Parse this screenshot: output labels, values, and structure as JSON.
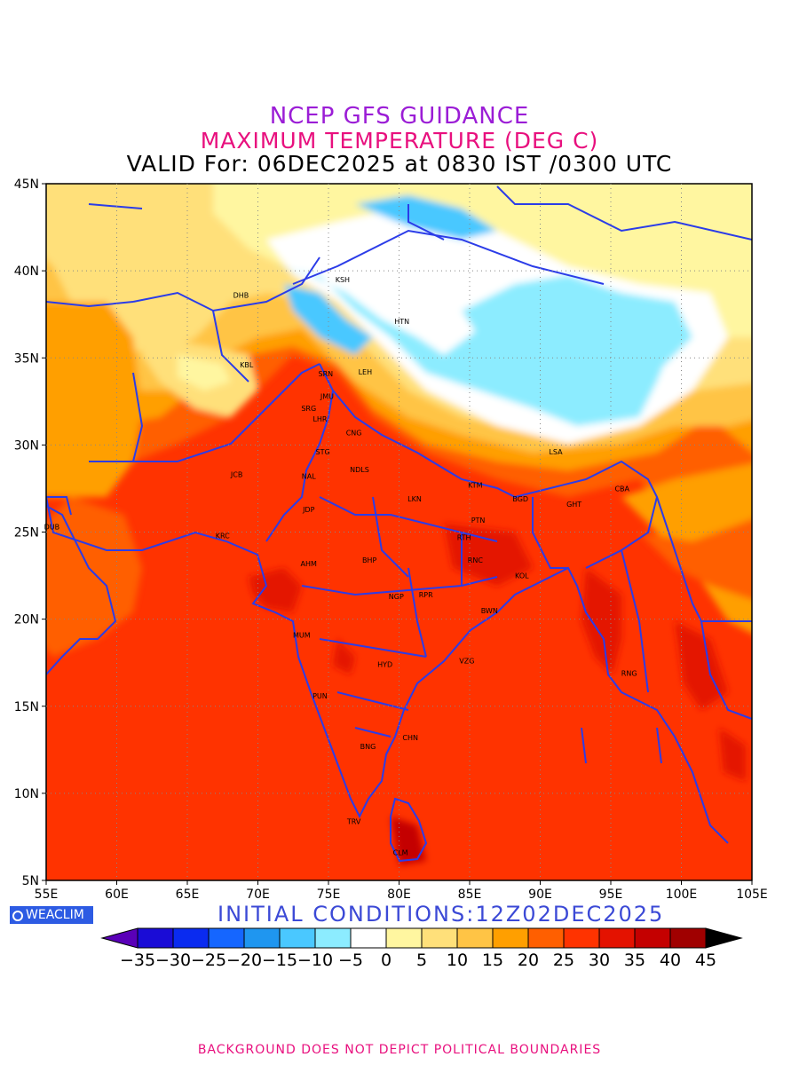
{
  "titles": {
    "line1": "NCEP GFS GUIDANCE",
    "line2": "MAXIMUM TEMPERATURE (DEG C)",
    "line3": "VALID For: 06DEC2025 at 0830 IST /0300 UTC"
  },
  "axes": {
    "lon_labels": [
      "55E",
      "60E",
      "65E",
      "70E",
      "75E",
      "80E",
      "85E",
      "90E",
      "95E",
      "100E",
      "105E"
    ],
    "lat_labels": [
      "5N",
      "10N",
      "15N",
      "20N",
      "25N",
      "30N",
      "35N",
      "40N",
      "45N"
    ],
    "lon_range": [
      55,
      105
    ],
    "lat_range": [
      5,
      45
    ],
    "grid": "dotted"
  },
  "cities": [
    {
      "code": "KSH",
      "lon": 76.0,
      "lat": 39.5
    },
    {
      "code": "DHB",
      "lon": 68.8,
      "lat": 38.6
    },
    {
      "code": "HTN",
      "lon": 80.2,
      "lat": 37.1
    },
    {
      "code": "KBL",
      "lon": 69.2,
      "lat": 34.6
    },
    {
      "code": "SRN",
      "lon": 74.8,
      "lat": 34.1
    },
    {
      "code": "LEH",
      "lon": 77.6,
      "lat": 34.2
    },
    {
      "code": "JMU",
      "lon": 74.9,
      "lat": 32.8
    },
    {
      "code": "SRG",
      "lon": 73.6,
      "lat": 32.1
    },
    {
      "code": "LHR",
      "lon": 74.4,
      "lat": 31.5
    },
    {
      "code": "CNG",
      "lon": 76.8,
      "lat": 30.7
    },
    {
      "code": "LSA",
      "lon": 91.1,
      "lat": 29.6
    },
    {
      "code": "JCB",
      "lon": 68.5,
      "lat": 28.3
    },
    {
      "code": "STG",
      "lon": 74.6,
      "lat": 29.6
    },
    {
      "code": "NAL",
      "lon": 73.6,
      "lat": 28.2
    },
    {
      "code": "NDLS",
      "lon": 77.2,
      "lat": 28.6
    },
    {
      "code": "KTM",
      "lon": 85.4,
      "lat": 27.7
    },
    {
      "code": "CBA",
      "lon": 95.8,
      "lat": 27.5
    },
    {
      "code": "BGD",
      "lon": 88.6,
      "lat": 26.9
    },
    {
      "code": "GHT",
      "lon": 92.4,
      "lat": 26.6
    },
    {
      "code": "LKN",
      "lon": 81.1,
      "lat": 26.9
    },
    {
      "code": "JDP",
      "lon": 73.6,
      "lat": 26.3
    },
    {
      "code": "DUB",
      "lon": 55.4,
      "lat": 25.3
    },
    {
      "code": "PTN",
      "lon": 85.6,
      "lat": 25.7
    },
    {
      "code": "KRC",
      "lon": 67.5,
      "lat": 24.8
    },
    {
      "code": "RTH",
      "lon": 84.6,
      "lat": 24.7
    },
    {
      "code": "AHM",
      "lon": 73.6,
      "lat": 23.2
    },
    {
      "code": "BHP",
      "lon": 77.9,
      "lat": 23.4
    },
    {
      "code": "RNC",
      "lon": 85.4,
      "lat": 23.4
    },
    {
      "code": "KOL",
      "lon": 88.7,
      "lat": 22.5
    },
    {
      "code": "NGP",
      "lon": 79.8,
      "lat": 21.3
    },
    {
      "code": "RPR",
      "lon": 81.9,
      "lat": 21.4
    },
    {
      "code": "BWN",
      "lon": 86.4,
      "lat": 20.5
    },
    {
      "code": "MUM",
      "lon": 73.1,
      "lat": 19.1
    },
    {
      "code": "HYD",
      "lon": 79.0,
      "lat": 17.4
    },
    {
      "code": "VZG",
      "lon": 84.8,
      "lat": 17.6
    },
    {
      "code": "RNG",
      "lon": 96.3,
      "lat": 16.9
    },
    {
      "code": "PUN",
      "lon": 74.4,
      "lat": 15.6
    },
    {
      "code": "CHN",
      "lon": 80.8,
      "lat": 13.2
    },
    {
      "code": "BNG",
      "lon": 77.8,
      "lat": 12.7
    },
    {
      "code": "TRV",
      "lon": 76.8,
      "lat": 8.4
    },
    {
      "code": "CLM",
      "lon": 80.1,
      "lat": 6.6
    }
  ],
  "colorbar": {
    "labels": [
      "-35",
      "-30",
      "-25",
      "-20",
      "-15",
      "-10",
      "-5",
      "0",
      "5",
      "10",
      "15",
      "20",
      "25",
      "30",
      "35",
      "40",
      "45"
    ],
    "colors": [
      "#1a0cd6",
      "#0a2bf0",
      "#1566ff",
      "#1f96f0",
      "#4ac8ff",
      "#8cecff",
      "#ffffff",
      "#fff6a0",
      "#ffe07a",
      "#ffc445",
      "#ff9f00",
      "#ff5f00",
      "#ff3300",
      "#e41200",
      "#c40000",
      "#a00000"
    ],
    "under_color": "#5a00b8",
    "over_color": "#000000"
  },
  "footer": {
    "logo": "WEACLIM",
    "initial_conditions": "INITIAL  CONDITIONS:12Z02DEC2025",
    "disclaimer": "BACKGROUND DOES NOT DEPICT POLITICAL BOUNDARIES"
  }
}
